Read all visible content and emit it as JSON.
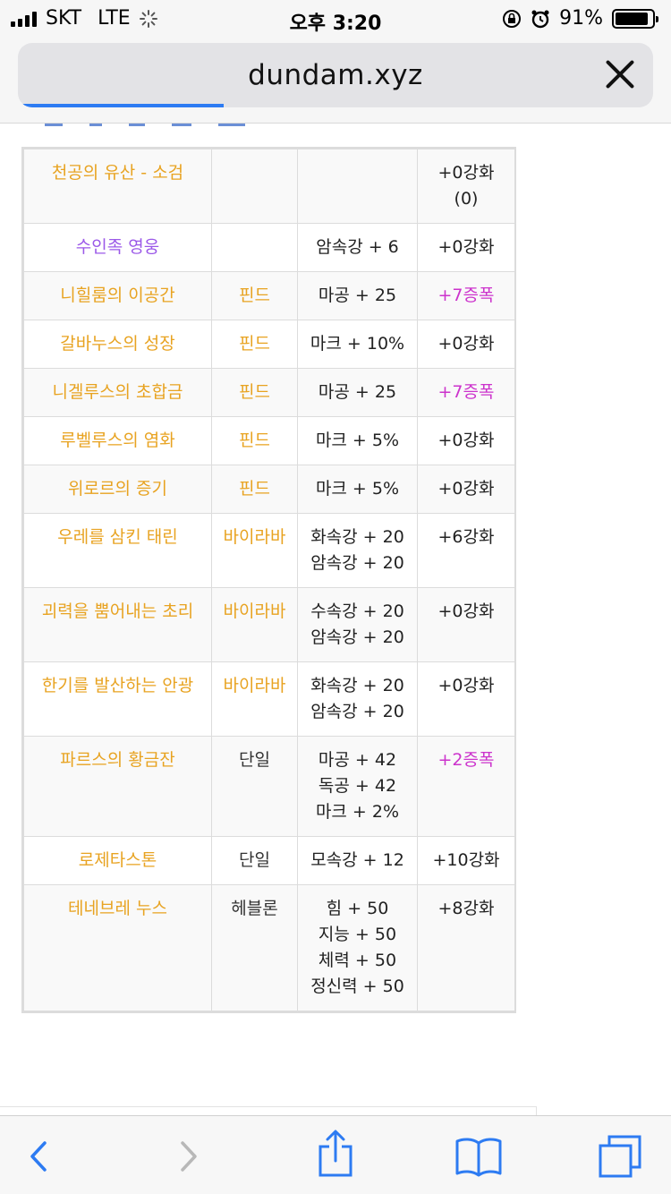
{
  "status": {
    "carrier": "SKT",
    "network": "LTE",
    "time": "오후 3:20",
    "battery": "91%",
    "battery_level": 0.91
  },
  "browser": {
    "url": "dundam.xyz"
  },
  "equipment": [
    {
      "name": "천공의 유산 - 소검",
      "name_color": "orange",
      "set": "",
      "stats": [],
      "upgrade": "+0강화",
      "upgrade_extra": "(0)",
      "upgrade_type": "normal"
    },
    {
      "name": "수인족 영웅",
      "name_color": "purple",
      "set": "",
      "stats": [
        "암속강 + 6"
      ],
      "upgrade": "+0강화",
      "upgrade_type": "normal"
    },
    {
      "name": "니힐룸의 이공간",
      "name_color": "orange",
      "set": "핀드",
      "stats": [
        "마공 + 25"
      ],
      "upgrade": "+7증폭",
      "upgrade_type": "amp"
    },
    {
      "name": "갈바누스의 성장",
      "name_color": "orange",
      "set": "핀드",
      "stats": [
        "마크 + 10%"
      ],
      "upgrade": "+0강화",
      "upgrade_type": "normal"
    },
    {
      "name": "니겔루스의 초합금",
      "name_color": "orange",
      "set": "핀드",
      "stats": [
        "마공 + 25"
      ],
      "upgrade": "+7증폭",
      "upgrade_type": "amp"
    },
    {
      "name": "루벨루스의 염화",
      "name_color": "orange",
      "set": "핀드",
      "stats": [
        "마크 + 5%"
      ],
      "upgrade": "+0강화",
      "upgrade_type": "normal"
    },
    {
      "name": "위로르의 증기",
      "name_color": "orange",
      "set": "핀드",
      "stats": [
        "마크 + 5%"
      ],
      "upgrade": "+0강화",
      "upgrade_type": "normal"
    },
    {
      "name": "우레를 삼킨 태린",
      "name_color": "orange",
      "set": "바이라바",
      "stats": [
        "화속강 + 20",
        "암속강 + 20"
      ],
      "upgrade": "+6강화",
      "upgrade_type": "normal"
    },
    {
      "name": "괴력을 뿜어내는 초리",
      "name_color": "orange",
      "set": "바이라바",
      "stats": [
        "수속강 + 20",
        "암속강 + 20"
      ],
      "upgrade": "+0강화",
      "upgrade_type": "normal"
    },
    {
      "name": "한기를 발산하는 안광",
      "name_color": "orange",
      "set": "바이라바",
      "stats": [
        "화속강 + 20",
        "암속강 + 20"
      ],
      "upgrade": "+0강화",
      "upgrade_type": "normal"
    },
    {
      "name": "파르스의 황금잔",
      "name_color": "orange",
      "set": "단일",
      "set_plain": true,
      "stats": [
        "마공 + 42",
        "독공 + 42",
        "마크 + 2%"
      ],
      "upgrade": "+2증폭",
      "upgrade_type": "amp"
    },
    {
      "name": "로제타스톤",
      "name_color": "orange",
      "set": "단일",
      "set_plain": true,
      "stats": [
        "모속강 + 12"
      ],
      "upgrade": "+10강화",
      "upgrade_type": "normal"
    },
    {
      "name": "테네브레 누스",
      "name_color": "orange",
      "set": "헤블론",
      "set_plain": true,
      "stats": [
        "힘 + 50",
        "지능 + 50",
        "체력 + 50",
        "정신력 + 50"
      ],
      "upgrade": "+8강화",
      "upgrade_type": "normal"
    }
  ],
  "toolbar": {
    "back_icon": "chevron-left-icon",
    "forward_icon": "chevron-right-icon",
    "share_icon": "share-icon",
    "bookmarks_icon": "book-icon",
    "tabs_icon": "tabs-icon"
  },
  "colors": {
    "accent": "#2d7bf2",
    "item_name": "#e8a321",
    "item_name_purple": "#9b59e8",
    "amplify": "#cc33cc"
  }
}
